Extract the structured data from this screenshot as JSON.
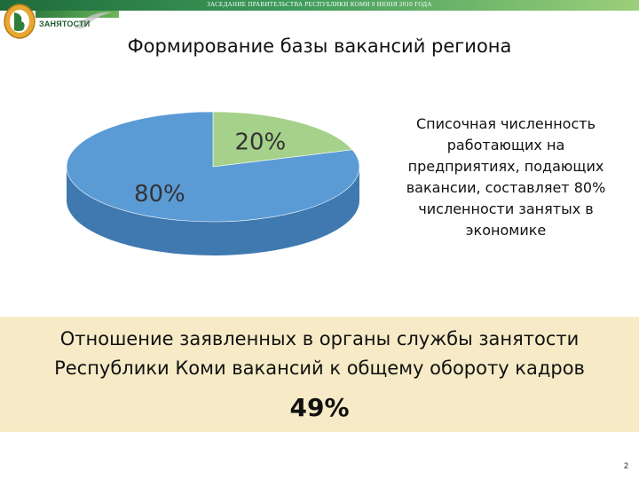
{
  "header": {
    "caption": "ЗАСЕДАНИЕ ПРАВИТЕЛЬСТВА РЕСПУБЛИКИ КОМИ 9 ИЮНЯ 2010 ГОДА",
    "logo_text": "ЗАНЯТОСТИ",
    "accent_color": "#3d9a5a"
  },
  "title": "Формирование базы вакансий региона",
  "chart_data": {
    "type": "pie",
    "style": "3d",
    "title": "",
    "slices": [
      {
        "label": "80%",
        "value": 80,
        "color": "#5b9bd5",
        "side_color": "#3f79b0"
      },
      {
        "label": "20%",
        "value": 20,
        "color": "#a5d18a",
        "side_color": "#7fb06a"
      }
    ],
    "legend": "none"
  },
  "side_note": [
    "Списочная численность",
    "работающих на",
    "предприятиях, подающих",
    "вакансии, составляет 80%",
    "численности занятых в",
    "экономике"
  ],
  "ratio": {
    "text_line1": "Отношение заявленных в органы службы занятости",
    "text_line2": "Республики Коми вакансий к общему обороту кадров",
    "value": "49%",
    "background": "#f6ebc6"
  },
  "page_number": "2"
}
